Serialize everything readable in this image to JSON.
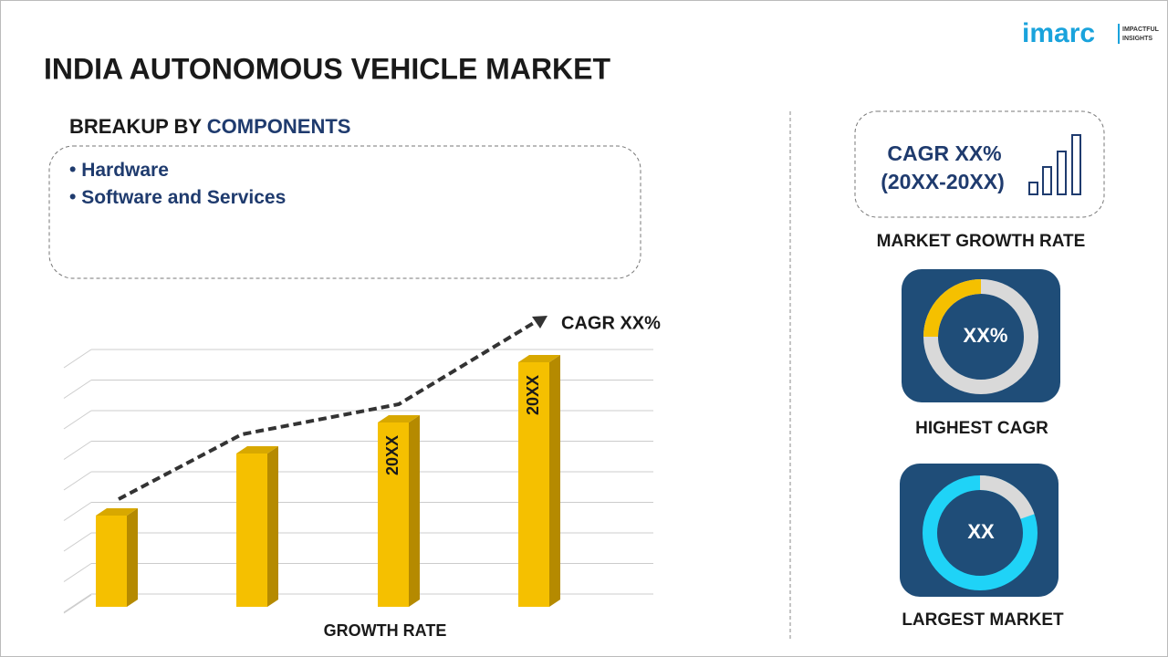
{
  "logo": {
    "brand": "imarc",
    "tagline": [
      "IMPACTFUL",
      "INSIGHTS"
    ]
  },
  "title": "INDIA AUTONOMOUS VEHICLE MARKET",
  "breakup": {
    "heading_prefix": "BREAKUP BY",
    "heading_highlight": "COMPONENTS",
    "items": [
      "Hardware",
      "Software and Services"
    ]
  },
  "growth_chart": {
    "trend_label": "CAGR XX%",
    "bar_labels": [
      "20XX",
      "20XX"
    ],
    "axis_label": "GROWTH RATE"
  },
  "cards": [
    {
      "lines": [
        "CAGR XX%",
        "(20XX-20XX)"
      ],
      "caption": "MARKET GROWTH RATE"
    },
    {
      "value": "XX%",
      "caption": "HIGHEST CAGR"
    },
    {
      "value": "XX",
      "caption": "LARGEST MARKET"
    }
  ]
}
